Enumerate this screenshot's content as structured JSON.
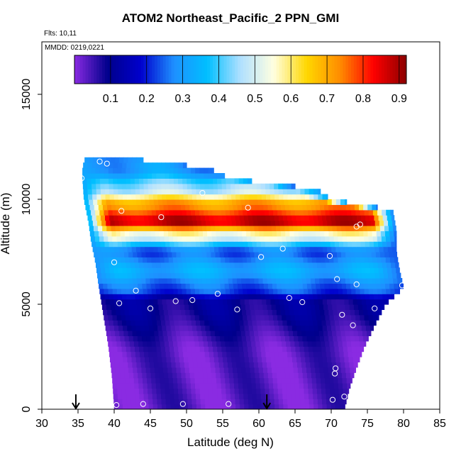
{
  "chart_data": {
    "type": "heatmap",
    "title": "ATOM2 Northeast_Pacific_2 PPN_GMI",
    "notes": [
      "Flts: 10,11",
      "MMDD: 0219,0221"
    ],
    "xlabel": "Latitude (deg N)",
    "ylabel": "Altitude (m)",
    "xlim": [
      30,
      85
    ],
    "ylim": [
      0,
      17500
    ],
    "x_ticks": [
      30,
      35,
      40,
      45,
      50,
      55,
      60,
      65,
      70,
      75,
      80,
      85
    ],
    "y_ticks": [
      0,
      5000,
      10000,
      15000
    ],
    "colorbar": {
      "range": [
        0,
        0.92
      ],
      "ticks": [
        0.1,
        0.2,
        0.3,
        0.4,
        0.5,
        0.6,
        0.7,
        0.8,
        0.9
      ],
      "colors": [
        "#8a2be2",
        "#00008b",
        "#0000cd",
        "#1e90ff",
        "#00bfff",
        "#b0e0ff",
        "#ffffe0",
        "#ffd700",
        "#ff8c00",
        "#ff0000",
        "#8b0000"
      ]
    },
    "curtain": {
      "lat_bin": 0.6,
      "alt_bin": 250,
      "profile_left": [
        [
          0,
          40
        ],
        [
          1500,
          39.7
        ],
        [
          3000,
          39.2
        ],
        [
          4500,
          38.5
        ],
        [
          6000,
          37.8
        ],
        [
          7000,
          37.4
        ],
        [
          8000,
          36.8
        ],
        [
          9000,
          36.4
        ],
        [
          10000,
          35.8
        ],
        [
          11000,
          35.6
        ],
        [
          11500,
          35.6
        ],
        [
          12000,
          36
        ]
      ],
      "profile_right": [
        [
          0,
          71.8
        ],
        [
          1000,
          72.5
        ],
        [
          2000,
          73.5
        ],
        [
          3000,
          74.6
        ],
        [
          4000,
          76
        ],
        [
          5000,
          77.5
        ],
        [
          5800,
          80
        ],
        [
          6500,
          79.5
        ],
        [
          7500,
          79
        ],
        [
          8500,
          79
        ],
        [
          9500,
          78.5
        ],
        [
          10000,
          70
        ],
        [
          10500,
          68
        ],
        [
          11000,
          56
        ],
        [
          11500,
          53
        ],
        [
          12000,
          41
        ]
      ],
      "layers": [
        {
          "alt": [
            0,
            4800
          ],
          "value": 0.03
        },
        {
          "alt": [
            4800,
            5400
          ],
          "value": 0.1
        },
        {
          "alt": [
            5400,
            6200
          ],
          "value": 0.25
        },
        {
          "alt": [
            6200,
            7000
          ],
          "value": 0.33
        },
        {
          "alt": [
            7000,
            8000
          ],
          "value": 0.25
        },
        {
          "alt": [
            8000,
            8600
          ],
          "value": 0.55
        },
        {
          "alt": [
            8600,
            9300
          ],
          "value": 0.88
        },
        {
          "alt": [
            9300,
            10200
          ],
          "value": 0.72
        },
        {
          "alt": [
            10200,
            10900
          ],
          "value": 0.45
        },
        {
          "alt": [
            10900,
            12000
          ],
          "value": 0.3
        }
      ]
    },
    "sample_points": [
      [
        40.3,
        200
      ],
      [
        44,
        250
      ],
      [
        49.5,
        250
      ],
      [
        55.8,
        250
      ],
      [
        70.2,
        450
      ],
      [
        71.8,
        600
      ],
      [
        70.5,
        1700
      ],
      [
        70.6,
        1950
      ],
      [
        73,
        4000
      ],
      [
        71.5,
        4500
      ],
      [
        76,
        4800
      ],
      [
        40.7,
        5050
      ],
      [
        45,
        4800
      ],
      [
        48.5,
        5150
      ],
      [
        50.8,
        5200
      ],
      [
        57,
        4750
      ],
      [
        66,
        5100
      ],
      [
        64.2,
        5300
      ],
      [
        43,
        5650
      ],
      [
        54.3,
        5500
      ],
      [
        73.5,
        5950
      ],
      [
        79.8,
        5900
      ],
      [
        70.8,
        6200
      ],
      [
        40,
        7000
      ],
      [
        60.3,
        7250
      ],
      [
        69.8,
        7300
      ],
      [
        63.3,
        7650
      ],
      [
        46.5,
        9150
      ],
      [
        41,
        9450
      ],
      [
        58.5,
        9600
      ],
      [
        73.5,
        8700
      ],
      [
        74,
        8800
      ],
      [
        52.2,
        10300
      ],
      [
        68,
        10700
      ],
      [
        79.5,
        9900
      ],
      [
        35.5,
        11000
      ],
      [
        38,
        11800
      ],
      [
        39,
        11700
      ],
      [
        77,
        9750
      ]
    ],
    "arrows_lat": [
      34.7,
      61.1
    ]
  }
}
